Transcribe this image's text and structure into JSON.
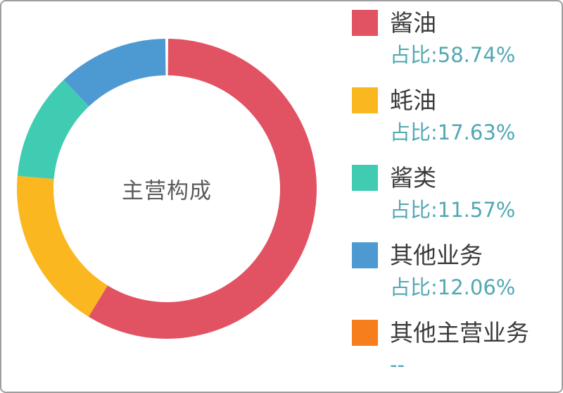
{
  "page": {
    "background": "#ffffff",
    "border_color": "#9e9e9e"
  },
  "chart_data": {
    "type": "pie",
    "subtype": "donut",
    "title": "主营构成",
    "center_label": "主营构成",
    "legend_position": "right",
    "inner_radius_ratio": 0.756,
    "start_angle_deg": 0,
    "direction": "clockwise",
    "percent_prefix": "占比:",
    "percent_text_color": "#51a8b2",
    "label_text_color": "#3b3b3b",
    "center_text_color": "#5b5b5b",
    "series": [
      {
        "name": "酱油",
        "value": 58.74,
        "percent_label": "占比:58.74%",
        "color": "#e15263"
      },
      {
        "name": "蚝油",
        "value": 17.63,
        "percent_label": "占比:17.63%",
        "color": "#fab71f"
      },
      {
        "name": "酱类",
        "value": 11.57,
        "percent_label": "占比:11.57%",
        "color": "#3fccb2"
      },
      {
        "name": "其他业务",
        "value": 12.06,
        "percent_label": "占比:12.06%",
        "color": "#4d9ad2"
      },
      {
        "name": "其他主营业务",
        "value": null,
        "percent_label": "--",
        "color": "#f67e1d"
      }
    ]
  }
}
